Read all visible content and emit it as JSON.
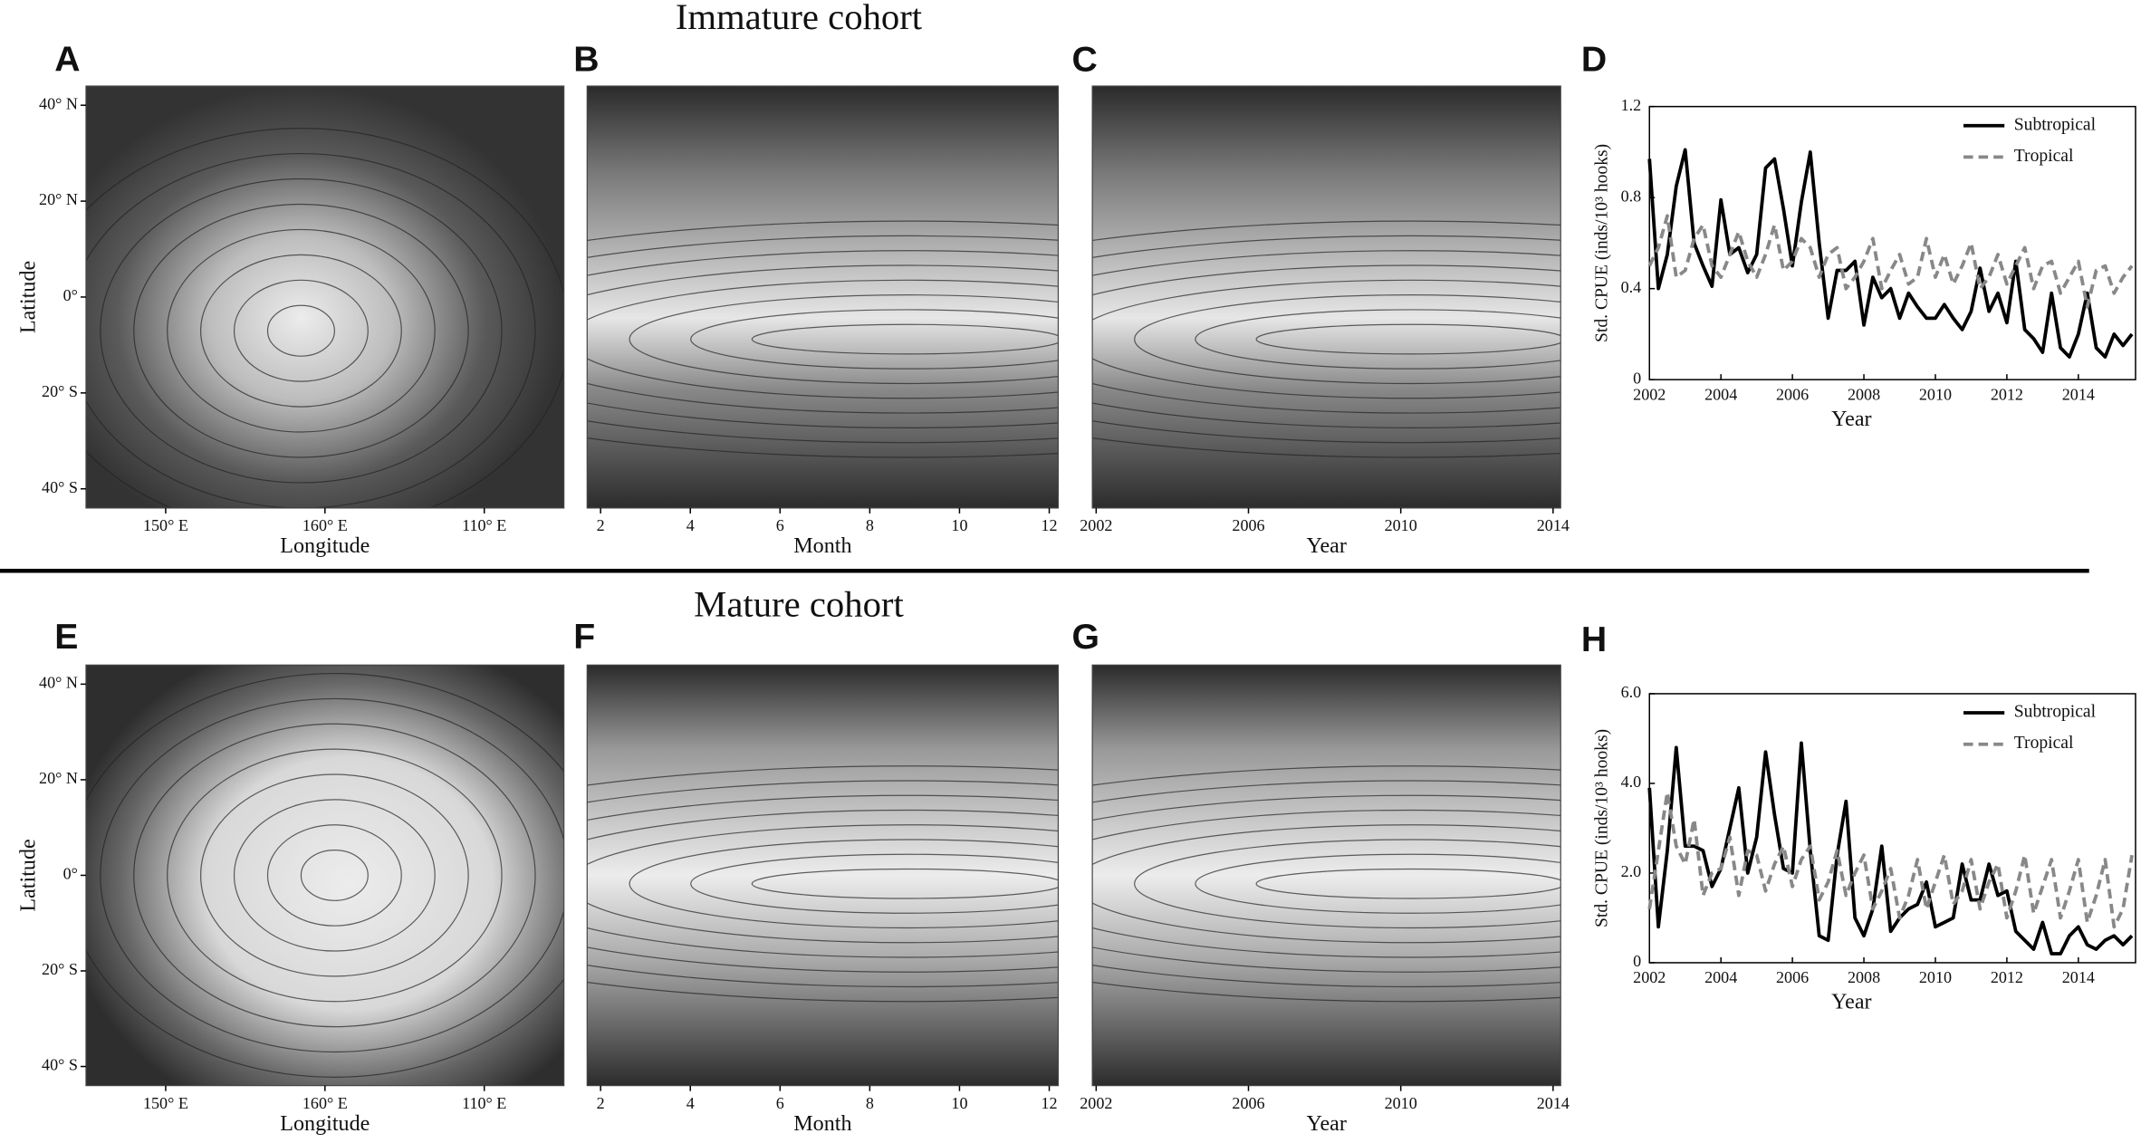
{
  "titles": [
    "Immature cohort",
    "Mature cohort"
  ],
  "chart_data": [
    {
      "type": "heatmap",
      "label": "A",
      "xlabel": "Longitude",
      "ylabel": "Latitude",
      "x_labels": [
        "150° E",
        "160° E",
        "110° E"
      ],
      "ylim": [
        -44,
        44
      ],
      "yticks": [
        {
          "value": 40,
          "label": "40° N"
        },
        {
          "value": 20,
          "label": "20° N"
        },
        {
          "value": 0,
          "label": "0°"
        },
        {
          "value": -20,
          "label": "20° S"
        },
        {
          "value": -40,
          "label": "40° S"
        }
      ]
    },
    {
      "type": "heatmap",
      "label": "B",
      "xlabel": "Month",
      "xlim": [
        1.7,
        12.2
      ],
      "xticks": [
        2,
        4,
        6,
        8,
        10,
        12
      ]
    },
    {
      "type": "heatmap",
      "label": "C",
      "xlabel": "Year",
      "xlim": [
        2001.9,
        2014.2
      ],
      "xticks": [
        2002,
        2006,
        2010,
        2014
      ]
    },
    {
      "type": "line",
      "label": "D",
      "xlabel": "Year",
      "ylabel": "Std. CPUE  (inds/10³ hooks)",
      "xlim": [
        2002,
        2015.6
      ],
      "xticks": [
        2002,
        2004,
        2006,
        2008,
        2010,
        2012,
        2014
      ],
      "ylim": [
        0,
        1.2
      ],
      "yticks": [
        0,
        0.4,
        0.8,
        1.2
      ],
      "x": [
        2002,
        2002.25,
        2002.5,
        2002.75,
        2003,
        2003.25,
        2003.5,
        2003.75,
        2004,
        2004.25,
        2004.5,
        2004.75,
        2005,
        2005.25,
        2005.5,
        2005.75,
        2006,
        2006.25,
        2006.5,
        2006.75,
        2007,
        2007.25,
        2007.5,
        2007.75,
        2008,
        2008.25,
        2008.5,
        2008.75,
        2009,
        2009.25,
        2009.5,
        2009.75,
        2010,
        2010.25,
        2010.5,
        2010.75,
        2011,
        2011.25,
        2011.5,
        2011.75,
        2012,
        2012.25,
        2012.5,
        2012.75,
        2013,
        2013.25,
        2013.5,
        2013.75,
        2014,
        2014.25,
        2014.5,
        2014.75,
        2015,
        2015.25,
        2015.5
      ],
      "series": [
        {
          "name": "Subtropical",
          "color": "#000000",
          "values": [
            0.97,
            0.4,
            0.55,
            0.85,
            1.01,
            0.6,
            0.5,
            0.41,
            0.79,
            0.55,
            0.58,
            0.47,
            0.55,
            0.93,
            0.97,
            0.75,
            0.5,
            0.78,
            1.0,
            0.6,
            0.27,
            0.48,
            0.48,
            0.52,
            0.24,
            0.45,
            0.36,
            0.4,
            0.27,
            0.38,
            0.32,
            0.27,
            0.27,
            0.33,
            0.27,
            0.22,
            0.3,
            0.49,
            0.3,
            0.38,
            0.25,
            0.52,
            0.22,
            0.18,
            0.12,
            0.38,
            0.14,
            0.1,
            0.2,
            0.38,
            0.14,
            0.1,
            0.2,
            0.15,
            0.2
          ]
        },
        {
          "name": "Tropical",
          "color": "#888888",
          "values": [
            0.5,
            0.58,
            0.72,
            0.45,
            0.48,
            0.62,
            0.68,
            0.5,
            0.45,
            0.55,
            0.65,
            0.52,
            0.45,
            0.55,
            0.68,
            0.48,
            0.52,
            0.62,
            0.58,
            0.45,
            0.55,
            0.58,
            0.4,
            0.45,
            0.52,
            0.62,
            0.4,
            0.48,
            0.55,
            0.42,
            0.45,
            0.62,
            0.45,
            0.55,
            0.42,
            0.5,
            0.6,
            0.4,
            0.45,
            0.55,
            0.42,
            0.5,
            0.58,
            0.4,
            0.5,
            0.52,
            0.38,
            0.45,
            0.52,
            0.32,
            0.48,
            0.5,
            0.38,
            0.45,
            0.5
          ]
        }
      ]
    },
    {
      "type": "heatmap",
      "label": "E",
      "xlabel": "Longitude",
      "ylabel": "Latitude",
      "x_labels": [
        "150° E",
        "160° E",
        "110° E"
      ],
      "ylim": [
        -44,
        44
      ],
      "yticks": [
        {
          "value": 40,
          "label": "40° N"
        },
        {
          "value": 20,
          "label": "20° N"
        },
        {
          "value": 0,
          "label": "0°"
        },
        {
          "value": -20,
          "label": "20° S"
        },
        {
          "value": -40,
          "label": "40° S"
        }
      ]
    },
    {
      "type": "heatmap",
      "label": "F",
      "xlabel": "Month",
      "xlim": [
        1.7,
        12.2
      ],
      "xticks": [
        2,
        4,
        6,
        8,
        10,
        12
      ]
    },
    {
      "type": "heatmap",
      "label": "G",
      "xlabel": "Year",
      "xlim": [
        2001.9,
        2014.2
      ],
      "xticks": [
        2002,
        2006,
        2010,
        2014
      ]
    },
    {
      "type": "line",
      "label": "H",
      "xlabel": "Year",
      "ylabel": "Std. CPUE  (inds/10³ hooks)",
      "xlim": [
        2002,
        2015.6
      ],
      "xticks": [
        2002,
        2004,
        2006,
        2008,
        2010,
        2012,
        2014
      ],
      "ylim": [
        0,
        6
      ],
      "yticks": [
        0,
        {
          "value": 2,
          "label": "2.0"
        },
        {
          "value": 4,
          "label": "4.0"
        },
        {
          "value": 6,
          "label": "6.0"
        }
      ],
      "x": [
        2002,
        2002.25,
        2002.5,
        2002.75,
        2003,
        2003.25,
        2003.5,
        2003.75,
        2004,
        2004.25,
        2004.5,
        2004.75,
        2005,
        2005.25,
        2005.5,
        2005.75,
        2006,
        2006.25,
        2006.5,
        2006.75,
        2007,
        2007.25,
        2007.5,
        2007.75,
        2008,
        2008.25,
        2008.5,
        2008.75,
        2009,
        2009.25,
        2009.5,
        2009.75,
        2010,
        2010.25,
        2010.5,
        2010.75,
        2011,
        2011.25,
        2011.5,
        2011.75,
        2012,
        2012.25,
        2012.5,
        2012.75,
        2013,
        2013.25,
        2013.5,
        2013.75,
        2014,
        2014.25,
        2014.5,
        2014.75,
        2015,
        2015.25,
        2015.5
      ],
      "series": [
        {
          "name": "Subtropical",
          "color": "#000000",
          "values": [
            3.9,
            0.8,
            2.5,
            4.8,
            2.6,
            2.6,
            2.5,
            1.7,
            2.1,
            3.0,
            3.9,
            2.0,
            2.8,
            4.7,
            3.3,
            2.1,
            2.0,
            4.9,
            2.5,
            0.6,
            0.5,
            2.4,
            3.6,
            1.0,
            0.6,
            1.2,
            2.6,
            0.7,
            1.0,
            1.2,
            1.3,
            1.8,
            0.8,
            0.9,
            1.0,
            2.2,
            1.4,
            1.4,
            2.2,
            1.5,
            1.6,
            0.7,
            0.5,
            0.3,
            0.9,
            0.2,
            0.2,
            0.6,
            0.8,
            0.4,
            0.3,
            0.5,
            0.6,
            0.4,
            0.6
          ]
        },
        {
          "name": "Tropical",
          "color": "#888888",
          "values": [
            1.2,
            2.5,
            3.8,
            2.6,
            2.2,
            3.2,
            1.5,
            2.0,
            2.1,
            2.8,
            1.5,
            2.5,
            2.4,
            1.6,
            2.2,
            2.6,
            1.7,
            2.3,
            2.6,
            1.4,
            1.8,
            2.5,
            1.5,
            2.0,
            2.4,
            1.2,
            1.6,
            2.1,
            1.0,
            1.5,
            2.3,
            1.2,
            1.8,
            2.4,
            1.3,
            1.6,
            2.3,
            1.2,
            1.8,
            2.2,
            1.0,
            1.6,
            2.4,
            1.1,
            1.7,
            2.3,
            1.0,
            1.6,
            2.3,
            0.9,
            1.5,
            2.3,
            0.8,
            1.2,
            2.4
          ]
        }
      ]
    }
  ]
}
